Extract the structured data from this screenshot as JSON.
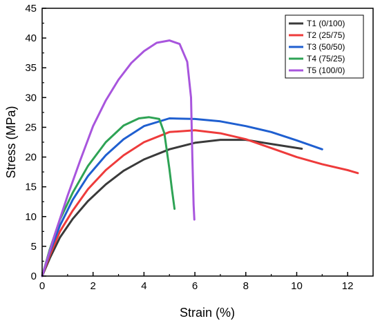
{
  "chart_data": {
    "type": "line",
    "xlabel": "Strain (%)",
    "ylabel": "Stress (MPa)",
    "xlim": [
      0,
      13
    ],
    "ylim": [
      0,
      45
    ],
    "x_ticks": [
      0,
      2,
      4,
      6,
      8,
      10,
      12
    ],
    "y_ticks": [
      0,
      5,
      10,
      15,
      20,
      25,
      30,
      35,
      40,
      45
    ],
    "x_tick_labels": [
      "0",
      "2",
      "4",
      "6",
      "8",
      "10",
      "12"
    ],
    "y_tick_labels": [
      "0",
      "5",
      "10",
      "15",
      "20",
      "25",
      "30",
      "35",
      "40",
      "45"
    ],
    "legend_position": "top-right",
    "grid": false,
    "series": [
      {
        "name": "T1 (0/100)",
        "color": "#3a3a3a",
        "points": [
          [
            0,
            0
          ],
          [
            0.3,
            3
          ],
          [
            0.7,
            6.5
          ],
          [
            1.2,
            9.6
          ],
          [
            1.8,
            12.6
          ],
          [
            2.5,
            15.4
          ],
          [
            3.2,
            17.7
          ],
          [
            4,
            19.6
          ],
          [
            5,
            21.3
          ],
          [
            6,
            22.4
          ],
          [
            7,
            22.9
          ],
          [
            8,
            22.9
          ],
          [
            9,
            22.2
          ],
          [
            10.2,
            21.4
          ]
        ]
      },
      {
        "name": "T2 (25/75)",
        "color": "#ee3b3b",
        "points": [
          [
            0,
            0
          ],
          [
            0.3,
            3.5
          ],
          [
            0.7,
            7.5
          ],
          [
            1.2,
            11
          ],
          [
            1.8,
            14.6
          ],
          [
            2.5,
            17.8
          ],
          [
            3.2,
            20.3
          ],
          [
            4,
            22.5
          ],
          [
            5,
            24.2
          ],
          [
            6,
            24.5
          ],
          [
            7,
            24
          ],
          [
            8,
            23
          ],
          [
            9,
            21.5
          ],
          [
            10,
            20
          ],
          [
            11,
            18.8
          ],
          [
            12,
            17.8
          ],
          [
            12.4,
            17.3
          ]
        ]
      },
      {
        "name": "T3 (50/50)",
        "color": "#1f5fd0",
        "points": [
          [
            0,
            0
          ],
          [
            0.3,
            4
          ],
          [
            0.7,
            8.5
          ],
          [
            1.2,
            12.8
          ],
          [
            1.8,
            16.8
          ],
          [
            2.5,
            20.3
          ],
          [
            3.2,
            23
          ],
          [
            4,
            25.2
          ],
          [
            5,
            26.5
          ],
          [
            6,
            26.4
          ],
          [
            7,
            26
          ],
          [
            8,
            25.2
          ],
          [
            9,
            24.2
          ],
          [
            10,
            22.8
          ],
          [
            11,
            21.3
          ]
        ]
      },
      {
        "name": "T4 (75/25)",
        "color": "#2ea355",
        "points": [
          [
            0,
            0
          ],
          [
            0.3,
            4.5
          ],
          [
            0.7,
            9.5
          ],
          [
            1.2,
            14
          ],
          [
            1.8,
            18.5
          ],
          [
            2.5,
            22.5
          ],
          [
            3.2,
            25.3
          ],
          [
            3.8,
            26.5
          ],
          [
            4.2,
            26.7
          ],
          [
            4.6,
            26.4
          ],
          [
            4.8,
            24
          ],
          [
            5,
            18
          ],
          [
            5.1,
            14.5
          ],
          [
            5.2,
            11.3
          ]
        ]
      },
      {
        "name": "T5 (100/0)",
        "color": "#a855dd",
        "points": [
          [
            0,
            0
          ],
          [
            0.5,
            7
          ],
          [
            1,
            13.5
          ],
          [
            1.5,
            19.5
          ],
          [
            2,
            25.2
          ],
          [
            2.5,
            29.5
          ],
          [
            3,
            33
          ],
          [
            3.5,
            35.8
          ],
          [
            4,
            37.8
          ],
          [
            4.5,
            39.2
          ],
          [
            5,
            39.6
          ],
          [
            5.4,
            39
          ],
          [
            5.7,
            36
          ],
          [
            5.85,
            30
          ],
          [
            5.9,
            20
          ],
          [
            5.95,
            12
          ],
          [
            5.98,
            9.5
          ]
        ]
      }
    ]
  }
}
